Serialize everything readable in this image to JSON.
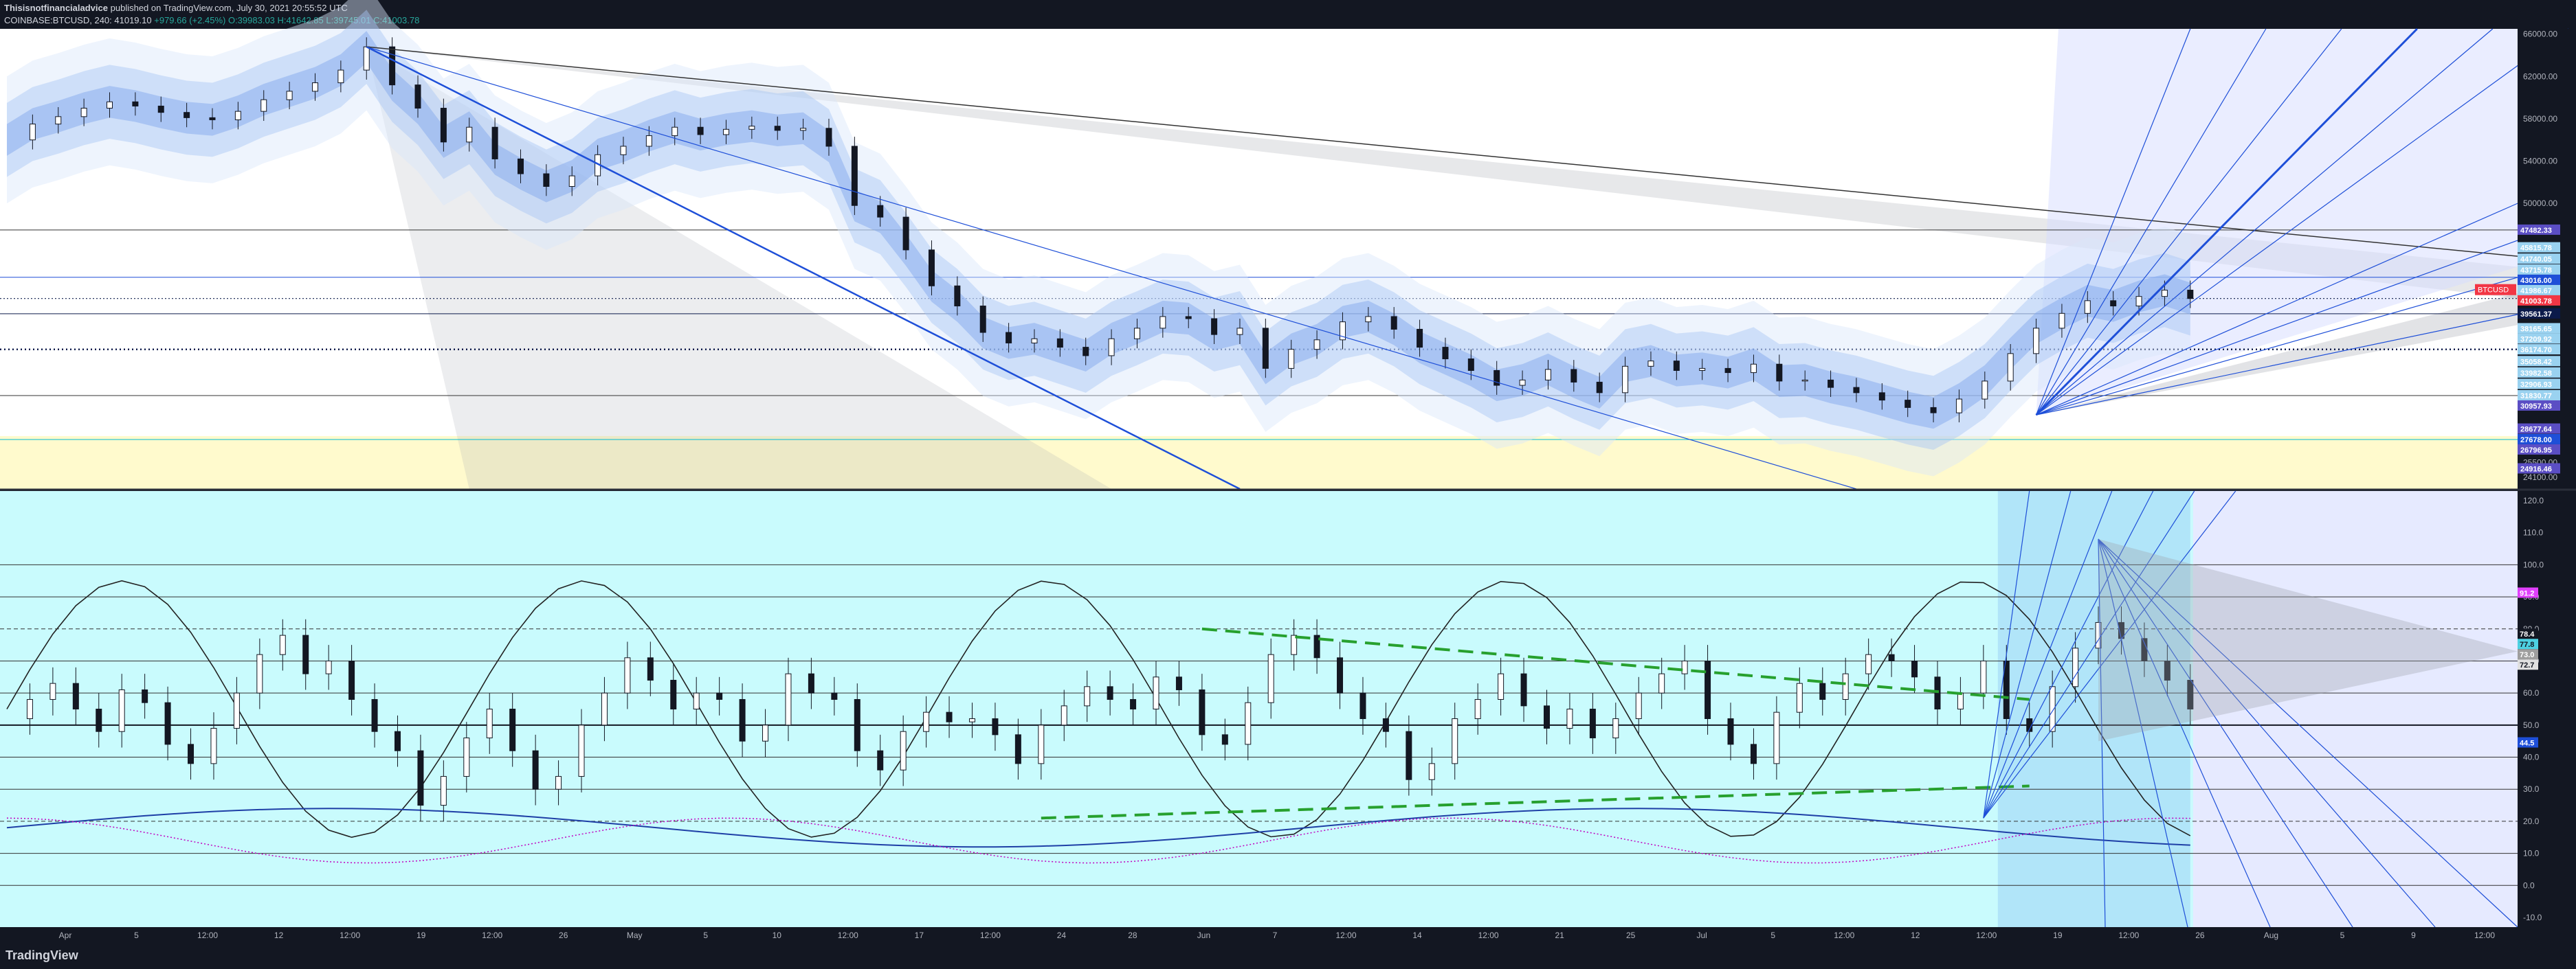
{
  "header": {
    "publisher": "Thisisnotfinancialadvice",
    "published_text": "published on TradingView.com, July 30, 2021 20:55:52 UTC",
    "symbol": "COINBASE:BTCUSD, 240",
    "last": "41019.10",
    "change": "+979.66 (+2.45%)",
    "ohlc": {
      "o": "O:39983.03",
      "h": "H:41642.85",
      "l": "L:39745.01",
      "c": "C:41003.78"
    }
  },
  "brand": "TradingView",
  "colors": {
    "bg": "#131722",
    "price_pane": "#ffffff",
    "osc_pane": "#c9fbfd",
    "zone": "#fff9c4",
    "fan": "#1e4fd8",
    "green": "#27a02e",
    "axis_text": "#b2b5be"
  },
  "chart_data": [
    {
      "type": "line",
      "name_hint": "price",
      "y_axis_ticks": [
        66000,
        62000,
        58000,
        54000,
        50000,
        25500,
        24100
      ],
      "ylim": [
        23000,
        66500
      ],
      "price_labels": [
        {
          "text": "47482.33",
          "color": "#5b4ec4"
        },
        {
          "text": "45815.78",
          "color": "#9ad2f0"
        },
        {
          "text": "44740.05",
          "color": "#9ad2f0"
        },
        {
          "text": "43715.78",
          "color": "#9ad2f0"
        },
        {
          "text": "43016.00",
          "color": "#1e4fd8"
        },
        {
          "text": "41986.67",
          "color": "#9ad2f0"
        },
        {
          "text": "BTCUSD",
          "color": "#f23645"
        },
        {
          "text": "41003.78",
          "color": "#f23645"
        },
        {
          "text": "39561.37",
          "color": "#0b1a4a"
        },
        {
          "text": "38165.65",
          "color": "#9ad2f0"
        },
        {
          "text": "37209.92",
          "color": "#9ad2f0"
        },
        {
          "text": "36174.70",
          "color": "#9ad2f0"
        },
        {
          "text": "35058.42",
          "color": "#9ad2f0"
        },
        {
          "text": "33982.58",
          "color": "#9ad2f0"
        },
        {
          "text": "32906.93",
          "color": "#9ad2f0"
        },
        {
          "text": "31830.77",
          "color": "#9ad2f0"
        },
        {
          "text": "30957.93",
          "color": "#5b4ec4"
        },
        {
          "text": "28677.64",
          "color": "#5b4ec4"
        },
        {
          "text": "27678.00",
          "color": "#1e4fd8"
        },
        {
          "text": "26796.95",
          "color": "#5b4ec4"
        },
        {
          "text": "24916.46",
          "color": "#5b4ec4"
        }
      ],
      "series": [
        {
          "values": [
            56000,
            57500,
            58200,
            59000,
            59600,
            59200,
            58600,
            58100,
            57900,
            58700,
            59800,
            60600,
            61400,
            62600,
            64800,
            61200,
            59000,
            55800,
            57200,
            54200,
            52800,
            51600,
            52600,
            54600,
            55400,
            56400,
            57200,
            56500,
            57000,
            57300,
            56900,
            57100,
            55400,
            49800,
            48700,
            45600,
            42200,
            40300,
            37800,
            36800,
            37200,
            36400,
            35600,
            37200,
            38200,
            39300,
            39100,
            37600,
            38200,
            34400,
            36200,
            37100,
            38800,
            39300,
            38100,
            36400,
            35300,
            34200,
            32800,
            33300,
            34300,
            33100,
            32100,
            34600,
            35100,
            34200,
            34400,
            34000,
            34800,
            33200,
            33300,
            32600,
            32100,
            31400,
            30700,
            30200,
            31500,
            33200,
            35800,
            38200,
            39600,
            40800,
            40300,
            41200,
            41800,
            41003
          ]
        }
      ],
      "x_ticks": [
        "Apr",
        "5",
        "12:00",
        "12",
        "12:00",
        "19",
        "12:00",
        "26",
        "May",
        "5",
        "10",
        "12:00",
        "17",
        "12:00",
        "24",
        "28",
        "Jun",
        "7",
        "12:00",
        "14",
        "12:00",
        "21",
        "25",
        "Jul",
        "5",
        "12:00",
        "12",
        "12:00",
        "19",
        "12:00",
        "26",
        "Aug",
        "5",
        "9",
        "12:00"
      ]
    },
    {
      "type": "line",
      "name_hint": "oscillator",
      "y_axis_ticks": [
        120.0,
        110.0,
        100.0,
        90.0,
        80.0,
        70.0,
        60.0,
        50.0,
        40.0,
        30.0,
        20.0,
        10.0,
        0.0,
        -10.0
      ],
      "ylim": [
        -13,
        123
      ],
      "levels": {
        "dashed": [
          80,
          20
        ],
        "solid": [
          100,
          90,
          70,
          60,
          50,
          40,
          30,
          10,
          0
        ]
      },
      "value_labels": [
        {
          "text": "91.2",
          "color": "#e040fb"
        },
        {
          "text": "78.4",
          "color": "#131722"
        },
        {
          "text": "77.8",
          "color": "#4dd0e1"
        },
        {
          "text": "73.0",
          "color": "#9e9e9e"
        },
        {
          "text": "72.7",
          "color": "#e0e0e0"
        },
        {
          "text": "44.5",
          "color": "#1e4fd8"
        }
      ],
      "series": [
        {
          "values": [
            52,
            58,
            63,
            55,
            48,
            61,
            57,
            44,
            38,
            49,
            60,
            72,
            78,
            66,
            70,
            58,
            48,
            42,
            25,
            34,
            46,
            55,
            42,
            30,
            34,
            50,
            60,
            71,
            64,
            55,
            60,
            58,
            45,
            50,
            66,
            60,
            58,
            42,
            36,
            48,
            54,
            51,
            52,
            47,
            38,
            50,
            56,
            62,
            58,
            55,
            65,
            61,
            47,
            44,
            57,
            72,
            78,
            71,
            60,
            52,
            48,
            33,
            38,
            52,
            58,
            66,
            56,
            49,
            55,
            46,
            52,
            60,
            66,
            70,
            52,
            44,
            38,
            54,
            63,
            58,
            66,
            72,
            70,
            65,
            55,
            60,
            70,
            52,
            48,
            62,
            74,
            82,
            77,
            70,
            64,
            55
          ]
        }
      ]
    }
  ]
}
